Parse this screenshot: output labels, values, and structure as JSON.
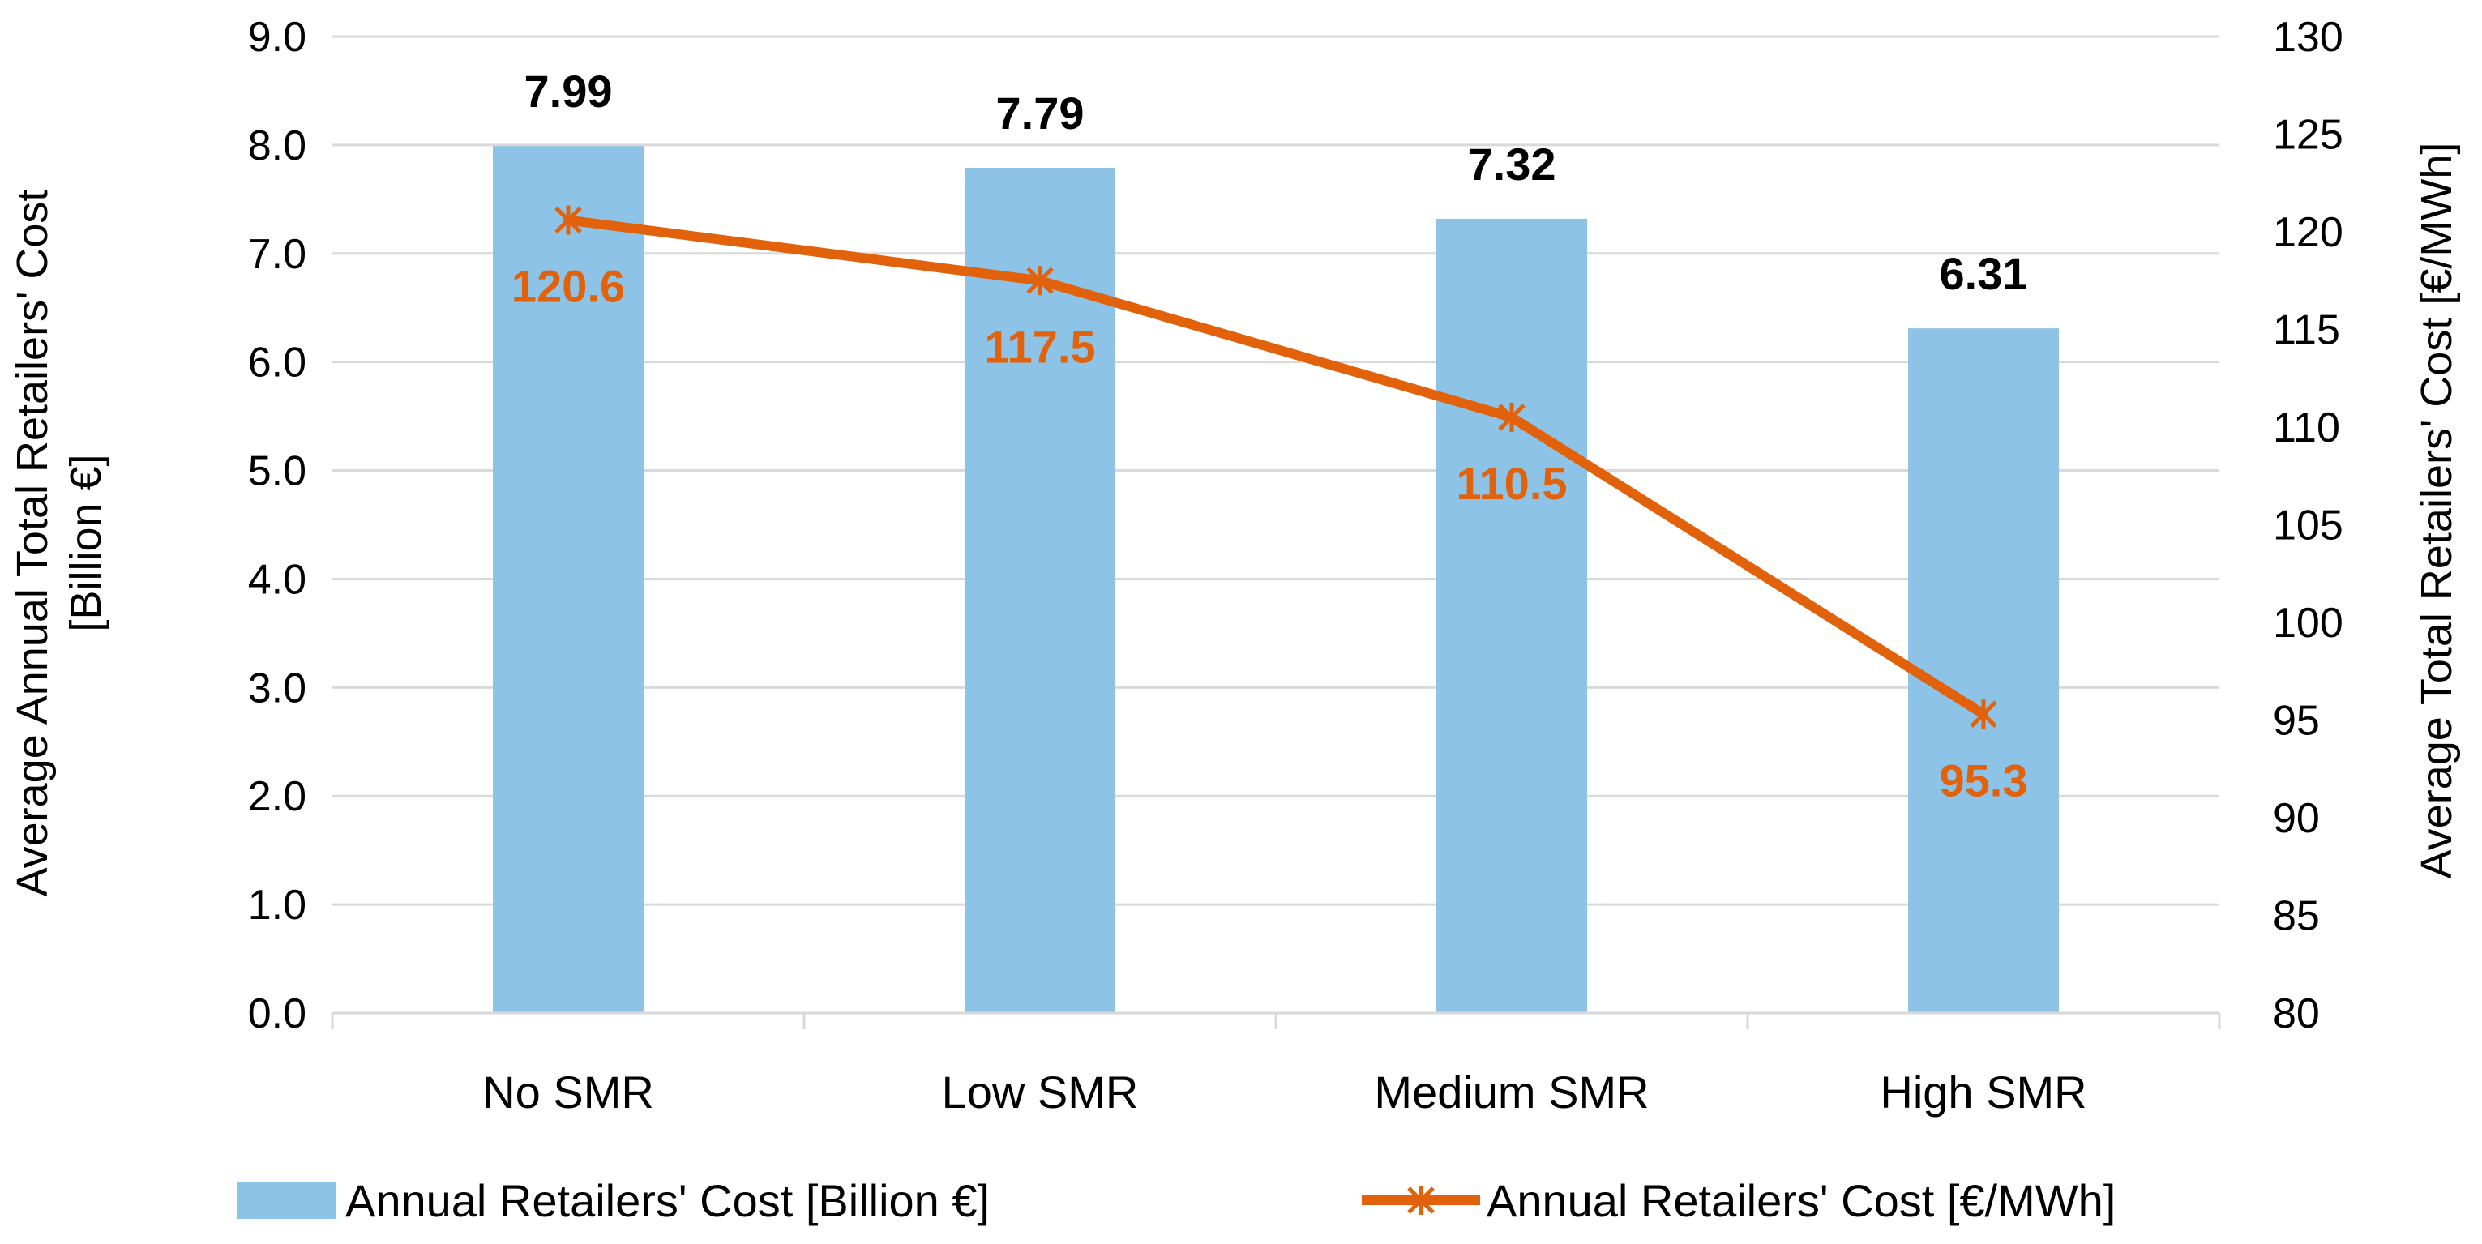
{
  "chart_data": {
    "type": "bar+line",
    "categories": [
      "No SMR",
      "Low SMR",
      "Medium SMR",
      "High SMR"
    ],
    "series": [
      {
        "name": "Annual Retailers' Cost [Billion €]",
        "type": "bar",
        "axis": "left",
        "values": [
          7.99,
          7.79,
          7.32,
          6.31
        ],
        "labels": [
          "7.99",
          "7.79",
          "7.32",
          "6.31"
        ],
        "color": "#8DC3E6"
      },
      {
        "name": "Annual Retailers' Cost [€/MWh]",
        "type": "line",
        "axis": "right",
        "values": [
          120.6,
          117.5,
          110.5,
          95.3
        ],
        "labels": [
          "120.6",
          "117.5",
          "110.5",
          "95.3"
        ],
        "color": "#E2620C",
        "marker": "asterisk"
      }
    ],
    "y_left": {
      "label_line1": "Average Annual Total Retailers' Cost",
      "label_line2": "[Billion €]",
      "ylim": [
        0,
        9
      ],
      "ticks": [
        "0.0",
        "1.0",
        "2.0",
        "3.0",
        "4.0",
        "5.0",
        "6.0",
        "7.0",
        "8.0",
        "9.0"
      ]
    },
    "y_right": {
      "label": "Average Total Retailers' Cost [€/MWh]",
      "ylim": [
        80,
        130
      ],
      "ticks": [
        "80",
        "85",
        "90",
        "95",
        "100",
        "105",
        "110",
        "115",
        "120",
        "125",
        "130"
      ]
    },
    "gridlines": true,
    "legend_position": "bottom"
  }
}
